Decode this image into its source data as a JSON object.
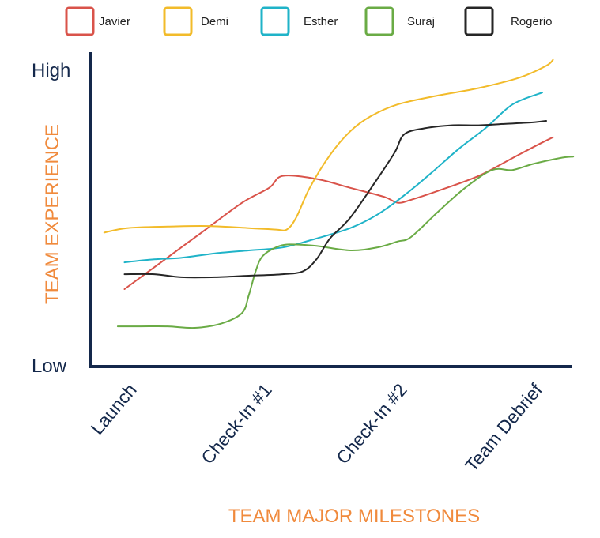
{
  "chart_data": {
    "type": "line",
    "title": "",
    "xlabel": "TEAM MAJOR MILESTONES",
    "ylabel": "TEAM EXPERIENCE",
    "y_tick_labels": [
      "Low",
      "High"
    ],
    "ylim": [
      0,
      100
    ],
    "categories": [
      "Launch",
      "Check-In #1",
      "Check-In #2",
      "Team Debrief"
    ],
    "x_note": "x values are in milestone units: 0 = Launch, 1 = Check-In #1, 2 = Check-In #2, 3 = Team Debrief",
    "legend_position": "top",
    "grid": false,
    "colors": {
      "axis": "#14284b",
      "axis_title": "#f08a3c",
      "tick_label": "#14284b"
    },
    "series": [
      {
        "name": "Javier",
        "color": "#d9534a",
        "x": [
          -0.12,
          0.15,
          0.45,
          0.75,
          0.95,
          1.05,
          1.3,
          1.55,
          1.8,
          1.9,
          2.0,
          2.2,
          2.5,
          2.75,
          2.96,
          3.05
        ],
        "y": [
          26,
          35,
          45,
          55,
          60,
          64,
          63,
          60,
          57,
          55,
          56,
          59,
          64,
          70,
          75,
          77
        ]
      },
      {
        "name": "Demi",
        "color": "#f2bb2a",
        "x": [
          -0.27,
          -0.1,
          0.2,
          0.5,
          0.8,
          1.0,
          1.08,
          1.15,
          1.25,
          1.4,
          1.55,
          1.7,
          1.9,
          2.2,
          2.5,
          2.8,
          3.0,
          3.05
        ],
        "y": [
          45,
          46.5,
          47,
          47.2,
          46.5,
          46,
          46,
          50,
          60,
          71,
          79,
          84,
          88,
          91,
          93.5,
          97,
          101,
          103
        ]
      },
      {
        "name": "Esther",
        "color": "#1fb3c8",
        "x": [
          -0.12,
          0.1,
          0.3,
          0.55,
          0.8,
          1.05,
          1.3,
          1.55,
          1.75,
          1.95,
          2.15,
          2.35,
          2.55,
          2.75,
          2.97
        ],
        "y": [
          35,
          36,
          36.5,
          38,
          39,
          40,
          43,
          46.5,
          51,
          57.5,
          65,
          73,
          80,
          88,
          92
        ]
      },
      {
        "name": "Suraj",
        "color": "#6aab45",
        "x": [
          -0.17,
          0.0,
          0.2,
          0.4,
          0.6,
          0.75,
          0.8,
          0.85,
          0.9,
          1.0,
          1.1,
          1.3,
          1.55,
          1.75,
          1.9,
          2.0,
          2.2,
          2.4,
          2.6,
          2.75,
          2.9,
          3.1,
          3.2
        ],
        "y": [
          13.5,
          13.5,
          13.5,
          13,
          14.5,
          18,
          24,
          32,
          37,
          40,
          41,
          40.5,
          39,
          40,
          42,
          43.5,
          52,
          60,
          66,
          66,
          68,
          70,
          70.5
        ]
      },
      {
        "name": "Rogerio",
        "color": "#262626",
        "x": [
          -0.12,
          0.1,
          0.3,
          0.55,
          0.8,
          1.05,
          1.2,
          1.3,
          1.4,
          1.55,
          1.75,
          1.88,
          1.95,
          2.1,
          2.3,
          2.5,
          2.7,
          2.9,
          3.0
        ],
        "y": [
          31,
          31,
          30,
          30,
          30.5,
          31,
          32,
          36,
          43,
          50,
          63,
          72,
          78,
          80,
          81,
          81,
          81.5,
          82,
          82.5
        ]
      }
    ]
  }
}
